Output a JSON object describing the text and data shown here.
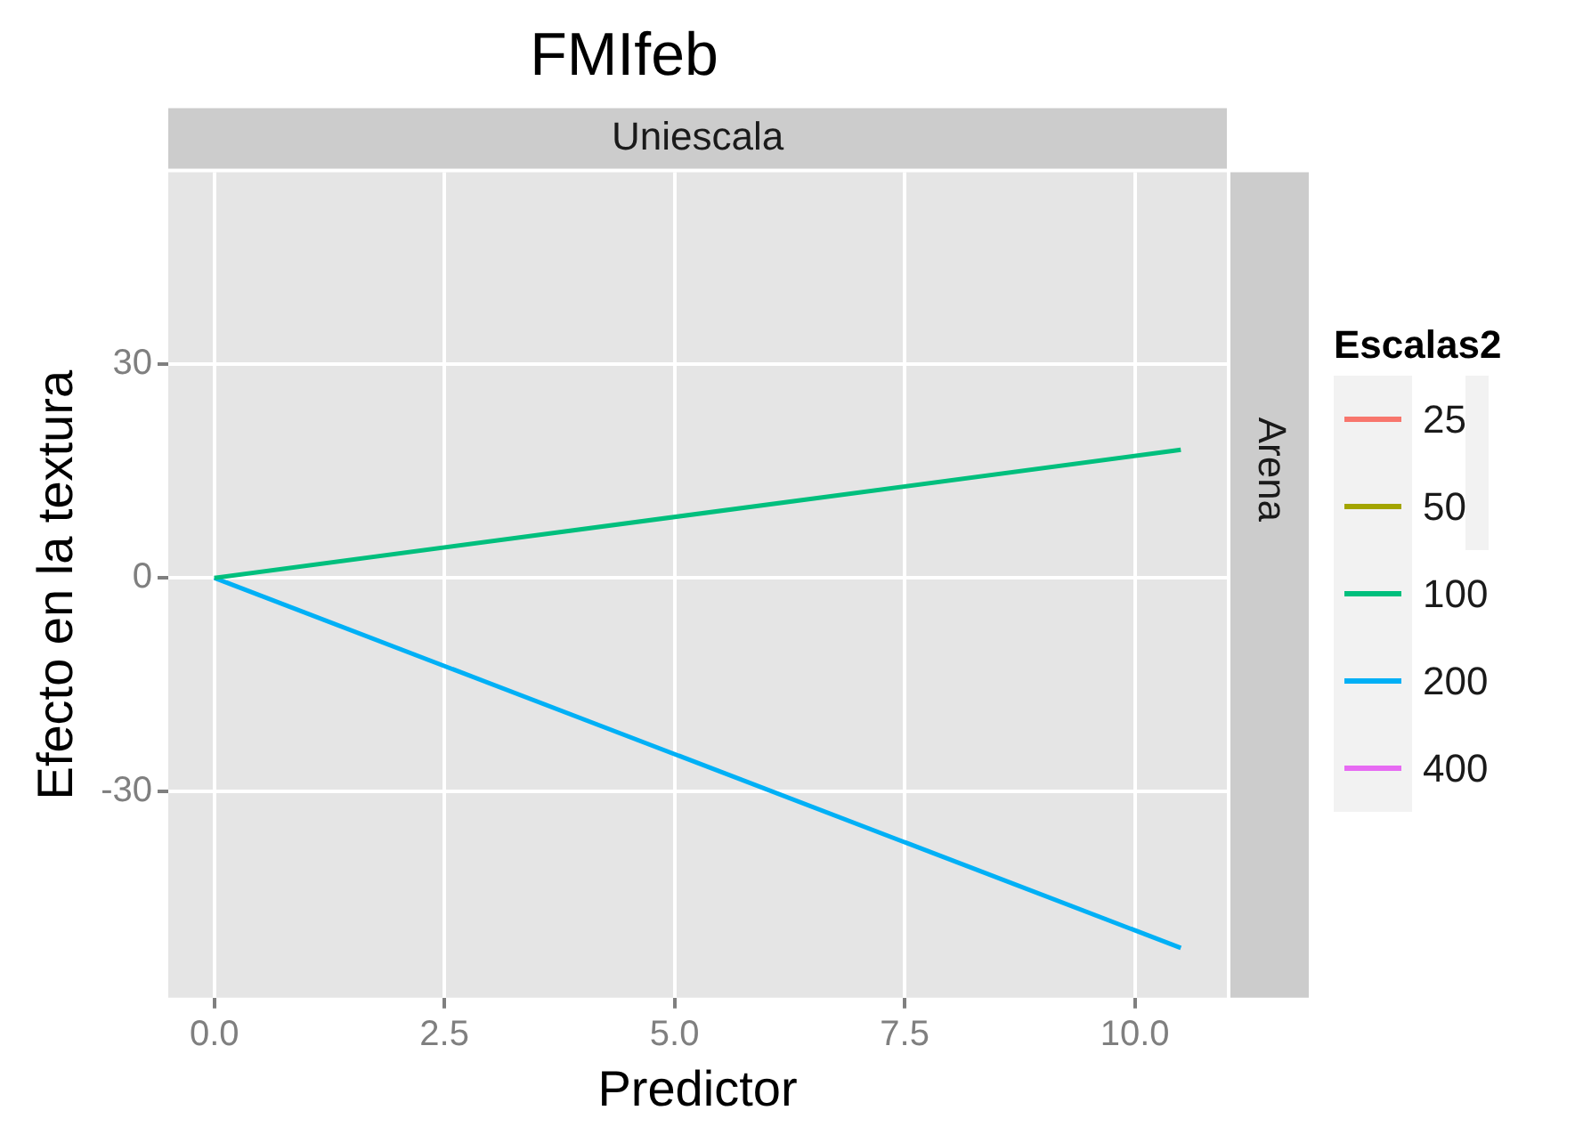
{
  "chart_data": {
    "type": "line",
    "title": "FMIfeb",
    "xlabel": "Predictor",
    "ylabel": "Efecto en la textura",
    "legend_title": "Escalas2",
    "annotations": [
      "Uniescala",
      "Arena"
    ],
    "x": [
      0,
      10.5
    ],
    "series": [
      {
        "name": "25",
        "color": "#f8766d",
        "values": [
          null,
          null
        ]
      },
      {
        "name": "50",
        "color": "#a3a500",
        "values": [
          null,
          null
        ]
      },
      {
        "name": "100",
        "color": "#00bf7d",
        "values": [
          0,
          18
        ]
      },
      {
        "name": "200",
        "color": "#00b0f6",
        "values": [
          0,
          -52
        ]
      },
      {
        "name": "400",
        "color": "#e76bf3",
        "values": [
          null,
          null
        ]
      }
    ],
    "xlim": [
      -0.5,
      11
    ],
    "xticks": [
      {
        "value": 0,
        "label": "0.0"
      },
      {
        "value": 2.5,
        "label": "2.5"
      },
      {
        "value": 5,
        "label": "5.0"
      },
      {
        "value": 7.5,
        "label": "7.5"
      },
      {
        "value": 10,
        "label": "10.0"
      }
    ],
    "ylim": [
      -59,
      57
    ],
    "yticks": [
      -30,
      0,
      30
    ],
    "grid": true,
    "legend": "right",
    "marker": "none",
    "line_style": "solid"
  }
}
